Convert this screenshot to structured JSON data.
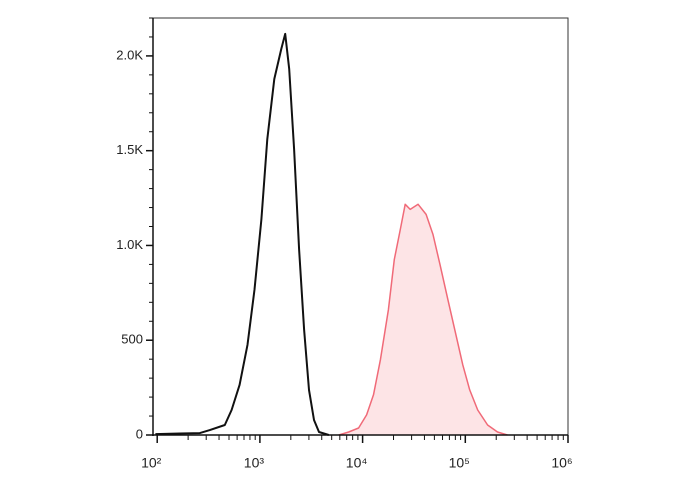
{
  "chart_data": {
    "type": "line",
    "xscale": "log",
    "xlim": [
      91,
      1000000
    ],
    "ylim": [
      0,
      2200
    ],
    "xticks": [
      {
        "value": 100,
        "label": "10²"
      },
      {
        "value": 1000,
        "label": "10³"
      },
      {
        "value": 10000,
        "label": "10⁴"
      },
      {
        "value": 100000,
        "label": "10⁵"
      },
      {
        "value": 1000000,
        "label": "10⁶"
      }
    ],
    "xminorticks": [
      200,
      300,
      400,
      500,
      600,
      700,
      800,
      900,
      2000,
      3000,
      4000,
      5000,
      6000,
      7000,
      8000,
      9000,
      20000,
      30000,
      40000,
      50000,
      60000,
      70000,
      80000,
      90000,
      200000,
      300000,
      400000,
      500000,
      600000,
      700000,
      800000,
      900000
    ],
    "yticks": [
      0,
      500,
      {
        "value": 1000,
        "label": "1.0K"
      },
      {
        "value": 1500,
        "label": "1.5K"
      },
      {
        "value": 2000,
        "label": "2.0K"
      }
    ],
    "yminorticks": [
      100,
      200,
      300,
      400,
      600,
      700,
      800,
      900,
      1100,
      1200,
      1300,
      1400,
      1600,
      1700,
      1800,
      1900,
      2100,
      2200
    ],
    "series": [
      {
        "color": "#111111",
        "fill": "none",
        "x": [
          96,
          166,
          260,
          325,
          455,
          530,
          635,
          757,
          885,
          1033,
          1180,
          1380,
          1614,
          1763,
          1927,
          2153,
          2409,
          2692,
          3008,
          3363,
          3758,
          4690
        ],
        "values": [
          5,
          8,
          10,
          26,
          53,
          132,
          265,
          476,
          767,
          1138,
          1561,
          1878,
          2037,
          2116,
          1931,
          1508,
          979,
          556,
          238,
          79,
          16,
          0
        ]
      },
      {
        "color": "#f06a78",
        "fill": "#fde4e6",
        "x": [
          5865,
          7325,
          9150,
          10930,
          12770,
          14920,
          17820,
          20370,
          23280,
          26010,
          29080,
          34730,
          41490,
          48500,
          56700,
          67750,
          80930,
          94580,
          110400,
          131900,
          164800,
          206000,
          257000
        ],
        "values": [
          0,
          16,
          37,
          106,
          212,
          397,
          661,
          926,
          1084,
          1217,
          1190,
          1217,
          1164,
          1058,
          899,
          714,
          529,
          370,
          238,
          132,
          53,
          16,
          0
        ]
      }
    ]
  }
}
